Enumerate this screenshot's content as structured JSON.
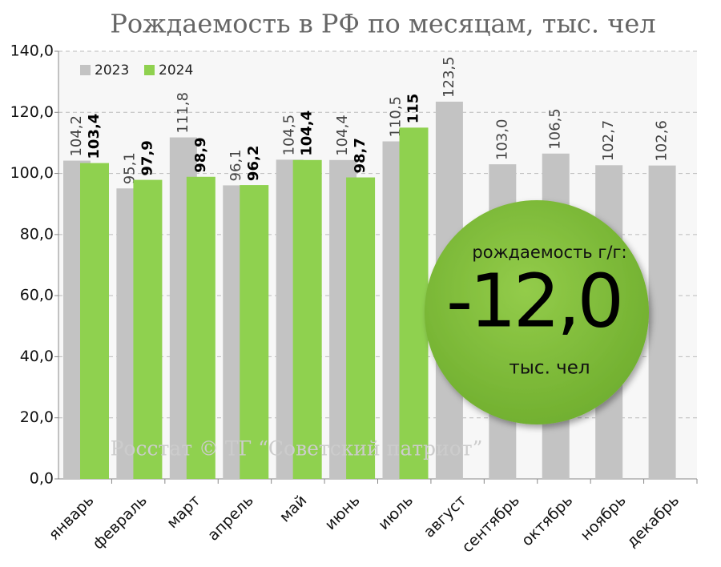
{
  "chart_data": {
    "type": "bar",
    "title": "Рождаемость в РФ по месяцам, тыс. чел",
    "categories": [
      "январь",
      "февраль",
      "март",
      "апрель",
      "май",
      "июнь",
      "июль",
      "август",
      "сентябрь",
      "октябрь",
      "ноябрь",
      "декабрь"
    ],
    "series": [
      {
        "name": "2023",
        "color": "#c3c3c3",
        "values": [
          104.2,
          95.1,
          111.8,
          96.1,
          104.5,
          104.4,
          110.5,
          123.5,
          103.0,
          106.5,
          102.7,
          102.6
        ],
        "value_labels": [
          "104,2",
          "95,1",
          "111,8",
          "96,1",
          "104,5",
          "104,4",
          "110,5",
          "123,5",
          "103,0",
          "106,5",
          "102,7",
          "102,6"
        ]
      },
      {
        "name": "2024",
        "color": "#8fd14f",
        "values": [
          103.4,
          97.9,
          98.9,
          96.2,
          104.4,
          98.7,
          115,
          null,
          null,
          null,
          null,
          null
        ],
        "value_labels": [
          "103,4",
          "97,9",
          "98,9",
          "96,2",
          "104,4",
          "98,7",
          "115",
          null,
          null,
          null,
          null,
          null
        ]
      }
    ],
    "ylim": [
      0,
      140
    ],
    "yticks": [
      {
        "value": 0,
        "label": "0,0"
      },
      {
        "value": 20,
        "label": "20,0"
      },
      {
        "value": 40,
        "label": "40,0"
      },
      {
        "value": 60,
        "label": "60,0"
      },
      {
        "value": 80,
        "label": "80,0"
      },
      {
        "value": 100,
        "label": "100,0"
      },
      {
        "value": 120,
        "label": "120,0"
      },
      {
        "value": 140,
        "label": "140,0"
      }
    ],
    "grid": true,
    "legend": "top-left",
    "annotations": {
      "circle_caption": "рождаемость г/г:",
      "circle_value": "-12,0",
      "circle_unit": "тыс. чел",
      "source": "Росстат © ТГ “Советский патриот”"
    }
  }
}
